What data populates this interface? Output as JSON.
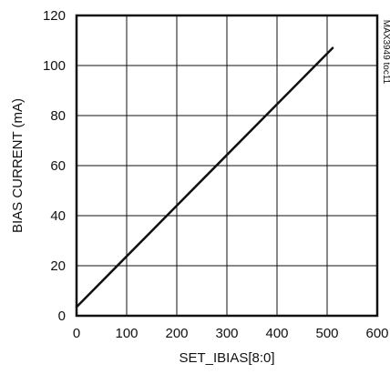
{
  "chart_data": {
    "type": "line",
    "title": "",
    "xlabel": "SET_IBIAS[8:0]",
    "ylabel": "BIAS CURRENT (mA)",
    "xlim": [
      0,
      600
    ],
    "ylim": [
      0,
      120
    ],
    "xticks": [
      0,
      100,
      200,
      300,
      400,
      500,
      600
    ],
    "yticks": [
      0,
      20,
      40,
      60,
      80,
      100,
      120
    ],
    "xtick_labels": [
      "0",
      "100",
      "200",
      "300",
      "400",
      "500",
      "600"
    ],
    "ytick_labels": [
      "0",
      "20",
      "40",
      "60",
      "80",
      "100",
      "120"
    ],
    "grid": true,
    "legend": "none",
    "annotation": "MAX3949 toc11",
    "series": [
      {
        "x": [
          0,
          511
        ],
        "y": [
          3.5,
          107
        ]
      }
    ],
    "colors": {
      "line": "#111111",
      "grid": "#111111",
      "frame": "#111111"
    }
  }
}
